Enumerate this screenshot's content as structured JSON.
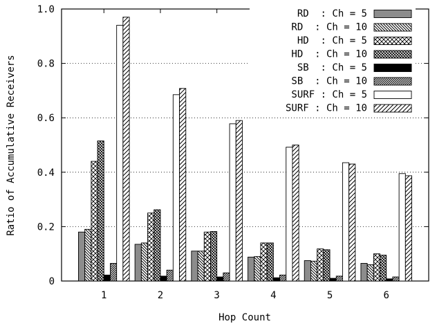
{
  "chart_data": {
    "type": "bar",
    "title": "",
    "xlabel": "Hop Count",
    "ylabel": "Ratio of Accumulative Receivers",
    "categories": [
      "1",
      "2",
      "3",
      "4",
      "5",
      "6"
    ],
    "ylim": [
      0,
      1.0
    ],
    "yticks": [
      "0",
      "0.2",
      "0.4",
      "0.6",
      "0.8",
      "1.0"
    ],
    "grid": true,
    "legend_position": "top-right",
    "series": [
      {
        "name": "RD  : Ch = 5",
        "pattern": "solid-gray",
        "values": [
          0.18,
          0.135,
          0.11,
          0.088,
          0.075,
          0.065
        ]
      },
      {
        "name": "RD  : Ch = 10",
        "pattern": "backslash",
        "values": [
          0.19,
          0.14,
          0.11,
          0.09,
          0.073,
          0.06
        ]
      },
      {
        "name": "HD  : Ch = 5",
        "pattern": "crosshatch",
        "values": [
          0.44,
          0.25,
          0.18,
          0.14,
          0.118,
          0.1
        ]
      },
      {
        "name": "HD  : Ch = 10",
        "pattern": "dense-check",
        "values": [
          0.515,
          0.262,
          0.182,
          0.14,
          0.115,
          0.095
        ]
      },
      {
        "name": "SB  : Ch = 5",
        "pattern": "solid-black",
        "values": [
          0.022,
          0.018,
          0.015,
          0.012,
          0.01,
          0.008
        ]
      },
      {
        "name": "SB  : Ch = 10",
        "pattern": "fine-hatch",
        "values": [
          0.065,
          0.04,
          0.03,
          0.022,
          0.018,
          0.015
        ]
      },
      {
        "name": "SURF : Ch = 5",
        "pattern": "empty",
        "values": [
          0.94,
          0.685,
          0.578,
          0.492,
          0.435,
          0.395
        ]
      },
      {
        "name": "SURF : Ch = 10",
        "pattern": "slash",
        "values": [
          0.97,
          0.708,
          0.59,
          0.5,
          0.43,
          0.387
        ]
      }
    ]
  }
}
